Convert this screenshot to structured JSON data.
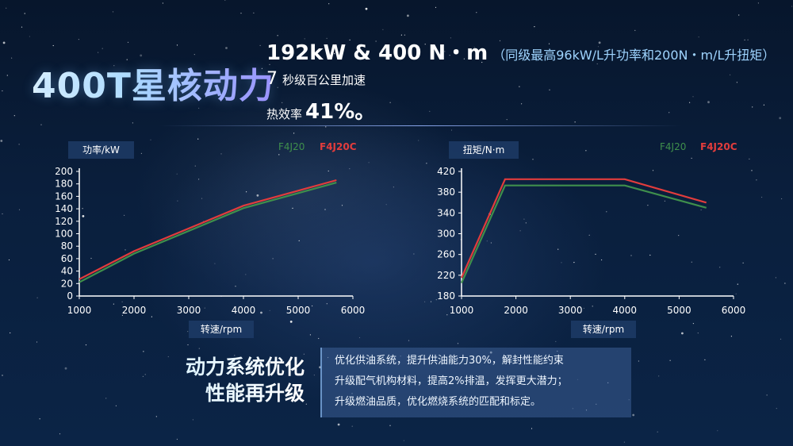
{
  "header": {
    "title": "400T星核动力",
    "line1": "192kW & 400 N・m",
    "line1_note": "（同级最高96kW/L升功率和200N・m/L升扭矩）",
    "line2_num": "7",
    "line2_text": "秒级百公里加速",
    "line3_text": "热效率",
    "line3_value": "41%。"
  },
  "summary": {
    "line1": "动力系统优化",
    "line2": "性能再升级"
  },
  "description": [
    "优化供油系统，提升供油能力30%，解封性能约束",
    "升级配气机构材料，提高2%排温，发挥更大潜力；",
    "升级燃油品质，优化燃烧系统的匹配和标定。"
  ],
  "colors": {
    "F4J20": "#3f8f4c",
    "F4J20C": "#e23c3c",
    "axis_text": "#ffffff",
    "label_box": "#1d3b66"
  },
  "chart_data": [
    {
      "type": "line",
      "ylabel": "功率/kW",
      "xlabel": "转速/rpm",
      "xlim": [
        1000,
        6000
      ],
      "ylim": [
        0,
        200
      ],
      "xticks": [
        1000,
        2000,
        3000,
        4000,
        5000,
        6000
      ],
      "yticks": [
        0,
        20,
        40,
        60,
        80,
        100,
        120,
        140,
        160,
        180,
        200
      ],
      "legend_position": "top-right",
      "series": [
        {
          "name": "F4J20",
          "x": [
            1000,
            2000,
            4000,
            5700
          ],
          "y": [
            22,
            68,
            141,
            182
          ]
        },
        {
          "name": "F4J20C",
          "x": [
            1000,
            2000,
            4000,
            5700
          ],
          "y": [
            27,
            72,
            145,
            186
          ]
        }
      ]
    },
    {
      "type": "line",
      "ylabel": "扭矩/N·m",
      "xlabel": "转速/rpm",
      "xlim": [
        1000,
        6000
      ],
      "ylim": [
        180,
        420
      ],
      "xticks": [
        1000,
        2000,
        3000,
        4000,
        5000,
        6000
      ],
      "yticks": [
        180,
        220,
        260,
        300,
        340,
        380,
        420
      ],
      "legend_position": "top-right",
      "series": [
        {
          "name": "F4J20",
          "x": [
            1000,
            1800,
            4000,
            5500
          ],
          "y": [
            205,
            393,
            393,
            350
          ]
        },
        {
          "name": "F4J20C",
          "x": [
            1000,
            1800,
            4000,
            5500
          ],
          "y": [
            215,
            405,
            405,
            360
          ]
        }
      ]
    }
  ]
}
